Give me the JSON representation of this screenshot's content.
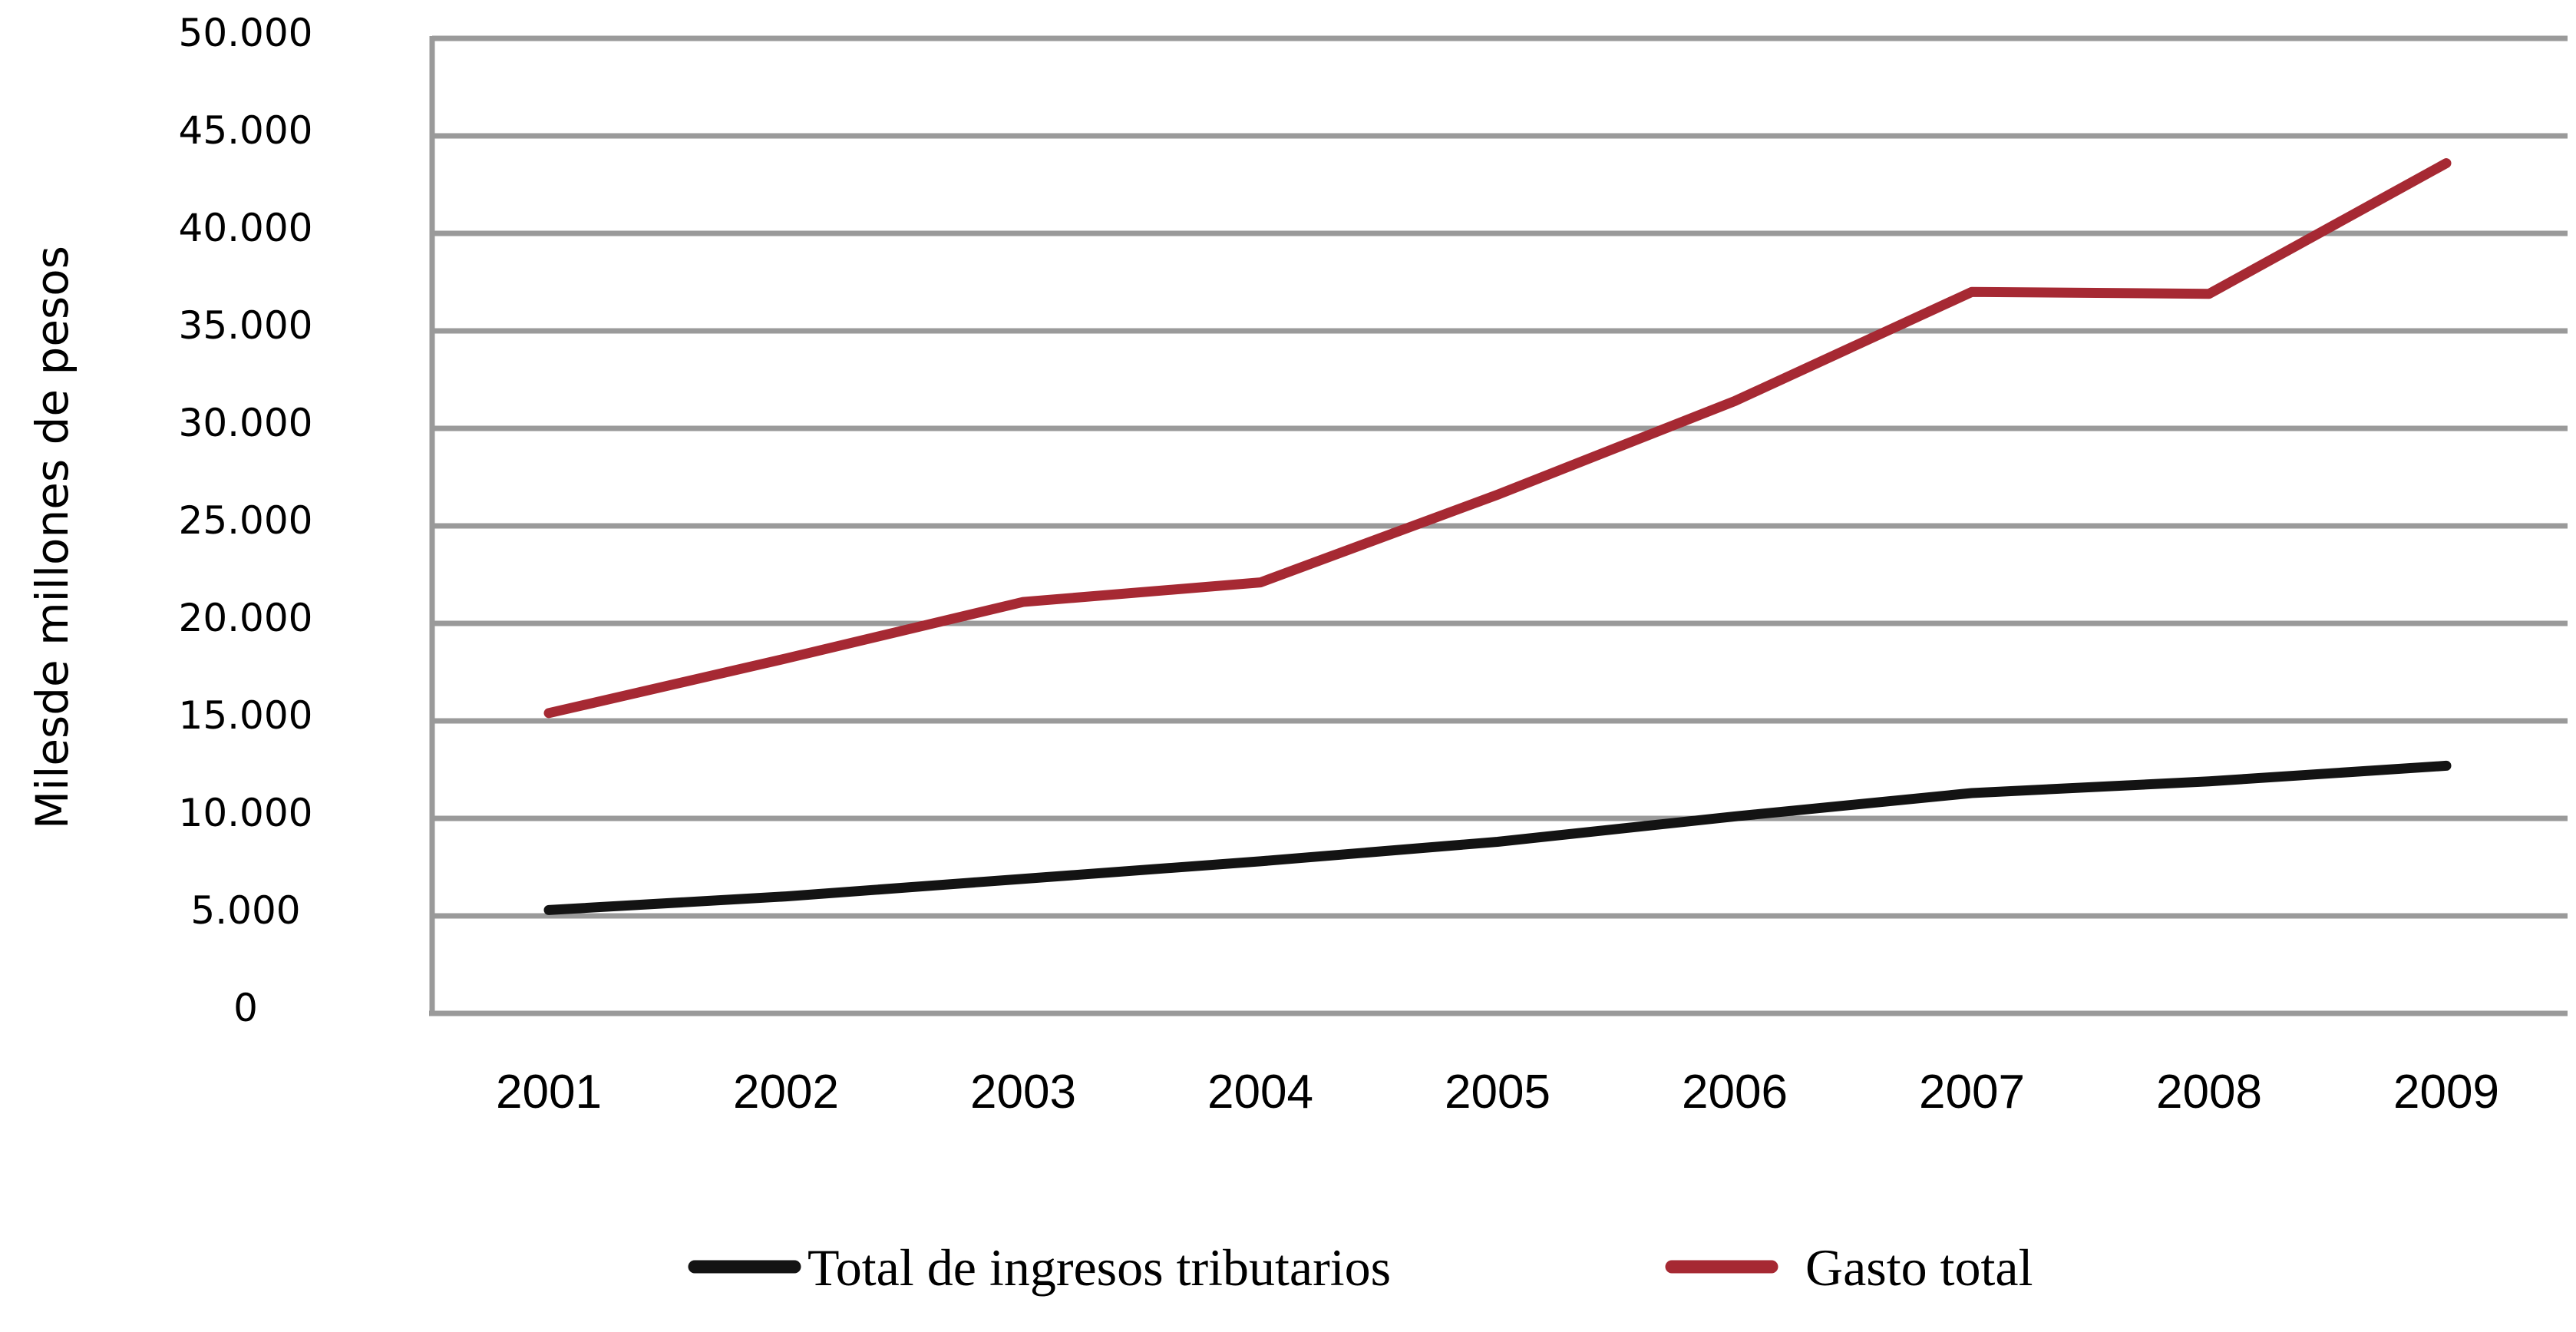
{
  "chart_data": {
    "type": "line",
    "title": "",
    "ylabel": "Milesde millones de pesos",
    "xlabel": "",
    "categories": [
      "2001",
      "2002",
      "2003",
      "2004",
      "2005",
      "2006",
      "2007",
      "2008",
      "2009"
    ],
    "series": [
      {
        "name": "Total de ingresos tributarios",
        "color": "#131313",
        "values": [
          5300,
          6000,
          6900,
          7800,
          8800,
          10100,
          11300,
          11900,
          12700
        ]
      },
      {
        "name": "Gasto total",
        "color": "#A62933",
        "values": [
          15400,
          18200,
          21100,
          22100,
          26600,
          31400,
          37000,
          36900,
          43600
        ]
      }
    ],
    "ylim": [
      0,
      50000
    ],
    "ytick_step": 5000,
    "ytick_labels": [
      "0",
      "5.000",
      "10.000",
      "15.000",
      "20.000",
      "25.000",
      "30.000",
      "35.000",
      "40.000",
      "45.000",
      "50.000"
    ],
    "grid": "horizontal-only",
    "legend_position": "bottom"
  },
  "colors": {
    "grid": "#9A9A9A",
    "axis": "#9A9A9A",
    "text": "#000000",
    "background": "#FFFFFF"
  }
}
